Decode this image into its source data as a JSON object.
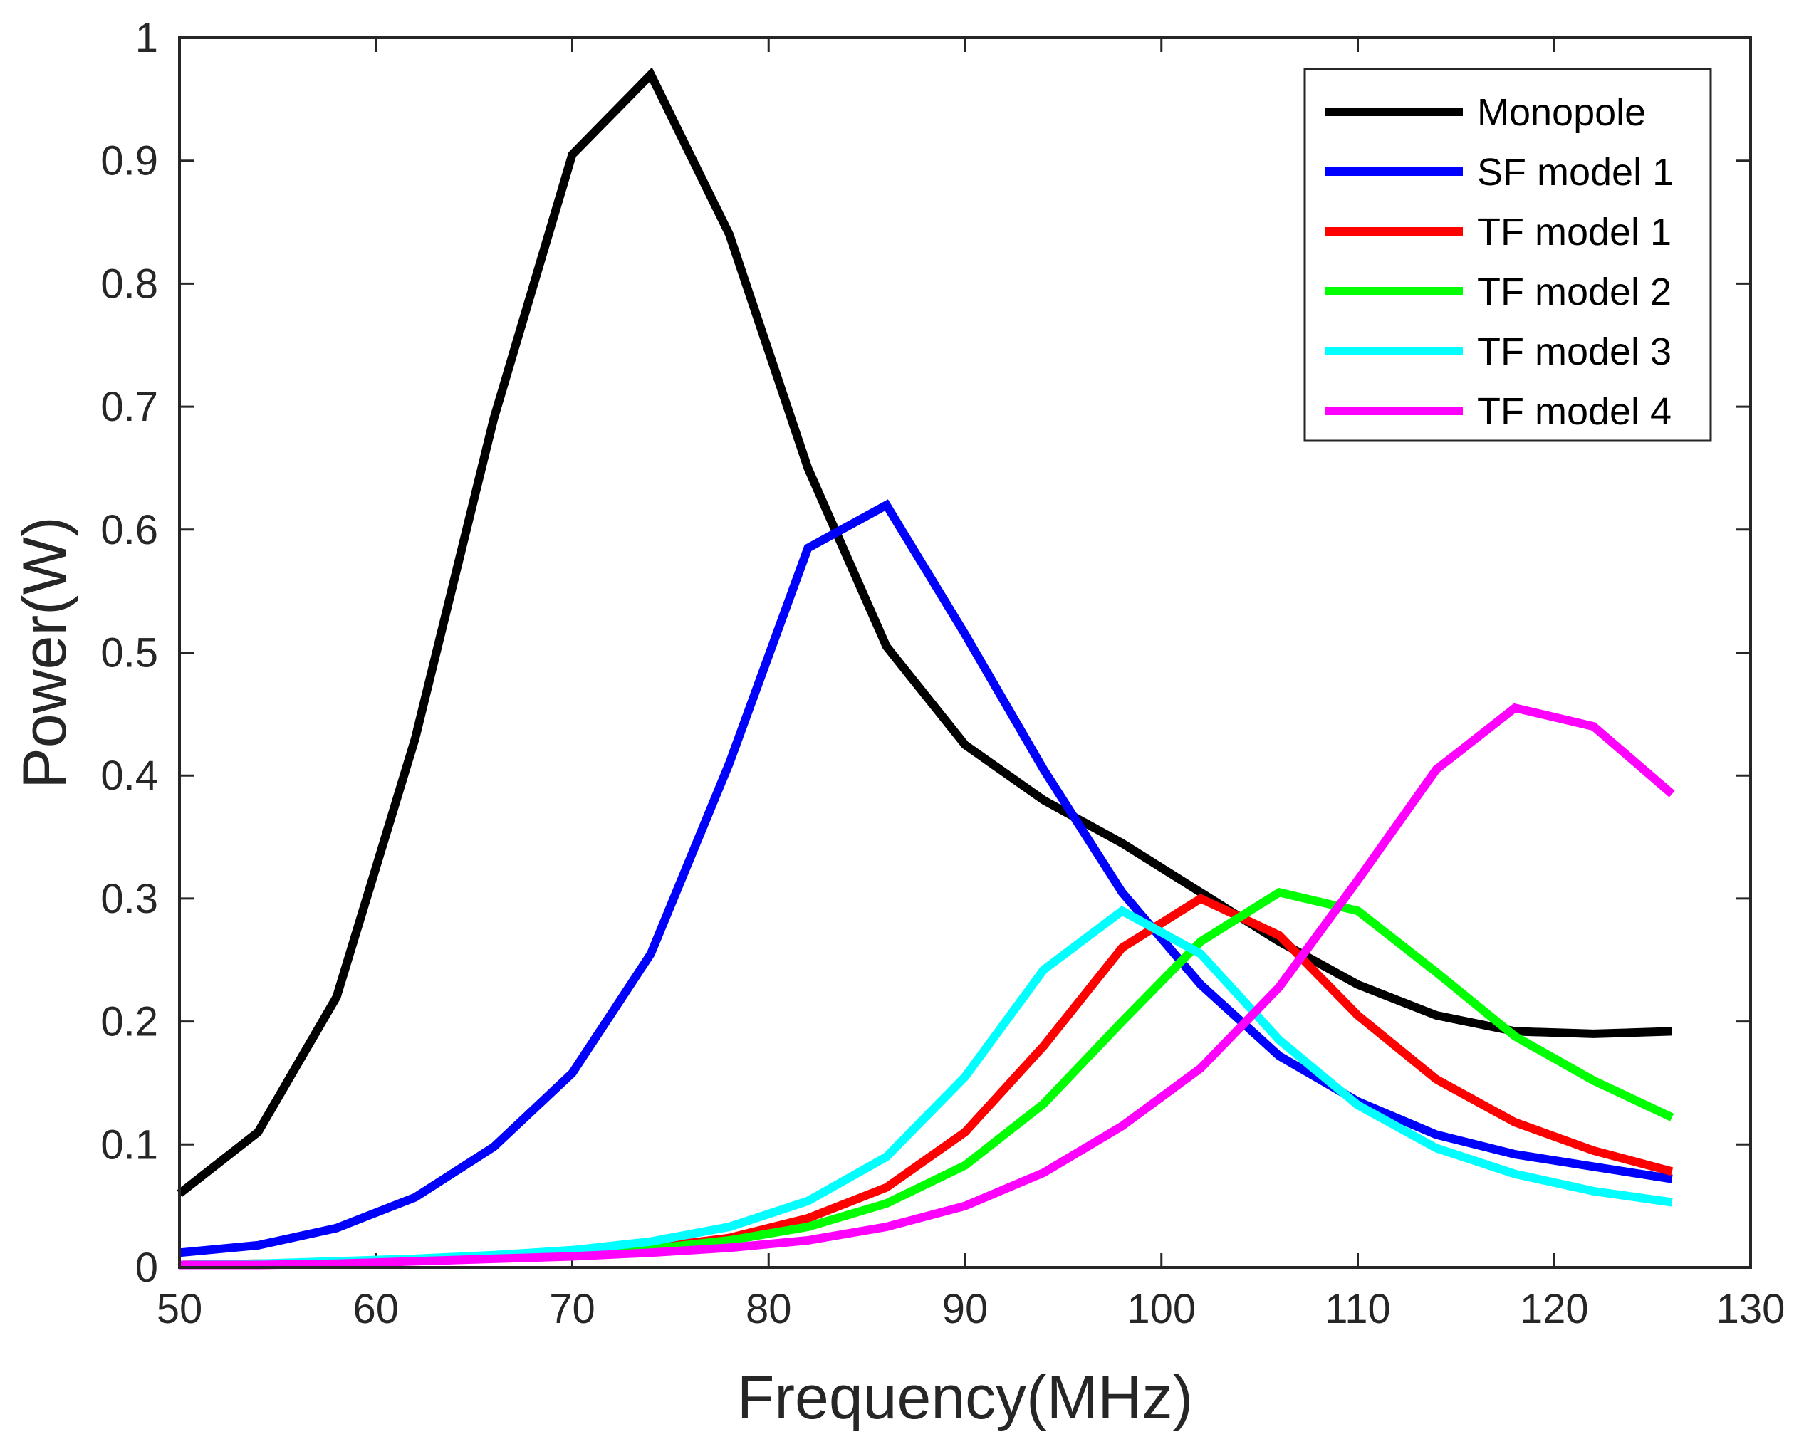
{
  "chart_data": {
    "type": "line",
    "title": "",
    "xlabel": "Frequency(MHz)",
    "ylabel": "Power(W)",
    "xlim": [
      50,
      130
    ],
    "ylim": [
      0,
      1
    ],
    "xticks": [
      50,
      60,
      70,
      80,
      90,
      100,
      110,
      120,
      130
    ],
    "yticks": [
      0,
      0.1,
      0.2,
      0.3,
      0.4,
      0.5,
      0.6,
      0.7,
      0.8,
      0.9,
      1
    ],
    "xtick_labels": [
      "50",
      "60",
      "70",
      "80",
      "90",
      "100",
      "110",
      "120",
      "130"
    ],
    "ytick_labels": [
      "0",
      "0.1",
      "0.2",
      "0.3",
      "0.4",
      "0.5",
      "0.6",
      "0.7",
      "0.8",
      "0.9",
      "1"
    ],
    "grid": false,
    "legend_position": "top-right",
    "x": [
      50,
      54,
      58,
      62,
      66,
      70,
      74,
      78,
      82,
      86,
      90,
      94,
      98,
      102,
      106,
      110,
      114,
      118,
      122,
      126
    ],
    "series": [
      {
        "name": "Monopole",
        "color": "#000000",
        "values": [
          0.06,
          0.11,
          0.22,
          0.43,
          0.69,
          0.905,
          0.97,
          0.84,
          0.65,
          0.505,
          0.425,
          0.38,
          0.345,
          0.305,
          0.265,
          0.23,
          0.205,
          0.192,
          0.19,
          0.192
        ]
      },
      {
        "name": "SF model 1",
        "color": "#0000ff",
        "values": [
          0.012,
          0.018,
          0.032,
          0.057,
          0.098,
          0.158,
          0.255,
          0.41,
          0.585,
          0.62,
          0.515,
          0.405,
          0.305,
          0.23,
          0.172,
          0.135,
          0.108,
          0.092,
          0.082,
          0.072
        ]
      },
      {
        "name": "TF model 1",
        "color": "#ff0000",
        "values": [
          0.002,
          0.003,
          0.004,
          0.006,
          0.008,
          0.011,
          0.016,
          0.024,
          0.04,
          0.065,
          0.11,
          0.18,
          0.26,
          0.3,
          0.27,
          0.205,
          0.153,
          0.118,
          0.095,
          0.078
        ]
      },
      {
        "name": "TF model 2",
        "color": "#00ff00",
        "values": [
          0.002,
          0.003,
          0.004,
          0.006,
          0.008,
          0.011,
          0.015,
          0.022,
          0.033,
          0.052,
          0.083,
          0.133,
          0.2,
          0.265,
          0.305,
          0.29,
          0.24,
          0.188,
          0.152,
          0.122
        ]
      },
      {
        "name": "TF model 3",
        "color": "#00ffff",
        "values": [
          0.002,
          0.003,
          0.005,
          0.007,
          0.01,
          0.014,
          0.021,
          0.033,
          0.054,
          0.09,
          0.155,
          0.242,
          0.29,
          0.255,
          0.185,
          0.132,
          0.097,
          0.076,
          0.062,
          0.053
        ]
      },
      {
        "name": "TF model 4",
        "color": "#ff00ff",
        "values": [
          0.002,
          0.002,
          0.003,
          0.005,
          0.007,
          0.009,
          0.012,
          0.016,
          0.022,
          0.033,
          0.05,
          0.077,
          0.115,
          0.162,
          0.228,
          0.315,
          0.405,
          0.455,
          0.44,
          0.385
        ]
      }
    ]
  }
}
